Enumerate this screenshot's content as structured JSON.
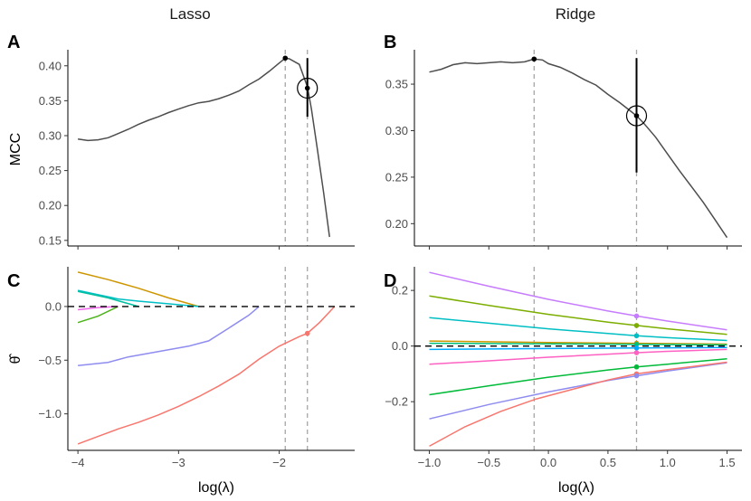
{
  "column_titles": {
    "lasso": "Lasso",
    "ridge": "Ridge"
  },
  "panel_labels": {
    "A": "A",
    "B": "B",
    "C": "C",
    "D": "D"
  },
  "axis_titles": {
    "mcc": "MCC",
    "theta": "θ̂",
    "x_lasso": "log(λ)",
    "x_ridge": "log(λ)"
  },
  "chart_data": [
    {
      "id": "A",
      "type": "line",
      "title": "Lasso",
      "ylabel": "MCC",
      "xlabel": "",
      "xlim": [
        -4.1,
        -1.25
      ],
      "ylim": [
        0.142,
        0.423
      ],
      "xticks": [
        -4,
        -3,
        -2
      ],
      "xtick_labels": [
        "−4",
        "−3",
        "−2"
      ],
      "yticks": [
        0.15,
        0.2,
        0.25,
        0.3,
        0.35,
        0.4
      ],
      "ytick_labels": [
        "0.15",
        "0.20",
        "0.25",
        "0.30",
        "0.35",
        "0.40"
      ],
      "show_xtick_labels": false,
      "vlines": [
        -1.94,
        -1.72
      ],
      "series": [
        {
          "name": "MCC",
          "color": "#4d4d4d",
          "x": [
            -4.0,
            -3.9,
            -3.8,
            -3.7,
            -3.6,
            -3.5,
            -3.4,
            -3.3,
            -3.2,
            -3.1,
            -3.0,
            -2.9,
            -2.8,
            -2.7,
            -2.6,
            -2.5,
            -2.4,
            -2.3,
            -2.2,
            -2.1,
            -2.0,
            -1.94,
            -1.9,
            -1.8,
            -1.72,
            -1.68,
            -1.62,
            -1.56,
            -1.5
          ],
          "y": [
            0.295,
            0.293,
            0.294,
            0.297,
            0.303,
            0.309,
            0.316,
            0.322,
            0.327,
            0.333,
            0.338,
            0.343,
            0.347,
            0.349,
            0.353,
            0.358,
            0.364,
            0.373,
            0.381,
            0.392,
            0.404,
            0.411,
            0.41,
            0.402,
            0.37,
            0.338,
            0.28,
            0.22,
            0.155
          ]
        }
      ],
      "points": [
        {
          "x": -1.94,
          "y": 0.411
        },
        {
          "x": -1.72,
          "y": 0.368
        }
      ],
      "errorbar": {
        "x": -1.72,
        "y": 0.368,
        "low": 0.327,
        "high": 0.411
      },
      "circle_at": {
        "x": -1.72,
        "y": 0.368
      }
    },
    {
      "id": "B",
      "type": "line",
      "title": "Ridge",
      "ylabel": "",
      "xlabel": "",
      "xlim": [
        -1.125,
        1.625
      ],
      "ylim": [
        0.176,
        0.387
      ],
      "xticks": [
        -1.0,
        -0.5,
        0.0,
        0.5,
        1.0,
        1.5
      ],
      "xtick_labels": [
        "−1.0",
        "−0.5",
        "0.0",
        "0.5",
        "1.0",
        "1.5"
      ],
      "yticks": [
        0.2,
        0.25,
        0.3,
        0.35
      ],
      "ytick_labels": [
        "0.20",
        "0.25",
        "0.30",
        "0.35"
      ],
      "show_xtick_labels": false,
      "vlines": [
        -0.12,
        0.74
      ],
      "series": [
        {
          "name": "MCC",
          "color": "#4d4d4d",
          "x": [
            -1.0,
            -0.9,
            -0.8,
            -0.7,
            -0.6,
            -0.5,
            -0.4,
            -0.3,
            -0.2,
            -0.12,
            -0.05,
            0.0,
            0.1,
            0.2,
            0.3,
            0.4,
            0.5,
            0.6,
            0.7,
            0.74,
            0.8,
            0.9,
            1.0,
            1.1,
            1.2,
            1.3,
            1.4,
            1.5
          ],
          "y": [
            0.363,
            0.366,
            0.371,
            0.373,
            0.372,
            0.373,
            0.374,
            0.373,
            0.374,
            0.377,
            0.376,
            0.372,
            0.368,
            0.362,
            0.355,
            0.349,
            0.339,
            0.33,
            0.32,
            0.316,
            0.308,
            0.293,
            0.275,
            0.257,
            0.24,
            0.223,
            0.204,
            0.185
          ]
        }
      ],
      "points": [
        {
          "x": -0.12,
          "y": 0.377
        },
        {
          "x": 0.74,
          "y": 0.316
        }
      ],
      "errorbar": {
        "x": 0.74,
        "y": 0.316,
        "low": 0.255,
        "high": 0.378
      },
      "circle_at": {
        "x": 0.74,
        "y": 0.316
      }
    },
    {
      "id": "C",
      "type": "line",
      "title": "",
      "ylabel": "θ̂",
      "xlabel": "log(λ)",
      "xlim": [
        -4.1,
        -1.25
      ],
      "ylim": [
        -1.34,
        0.37
      ],
      "xticks": [
        -4,
        -3,
        -2
      ],
      "xtick_labels": [
        "−4",
        "−3",
        "−2"
      ],
      "yticks": [
        -1.0,
        -0.5,
        0.0
      ],
      "ytick_labels": [
        "−1.0",
        "−0.5",
        "0.0"
      ],
      "show_xtick_labels": true,
      "vlines": [
        -1.94,
        -1.72
      ],
      "hline": 0,
      "series": [
        {
          "name": "coef-orange",
          "color": "#CD9600",
          "x": [
            -4.0,
            -3.7,
            -3.4,
            -3.1,
            -2.8
          ],
          "y": [
            0.32,
            0.25,
            0.17,
            0.08,
            0.0
          ]
        },
        {
          "name": "coef-teal",
          "color": "#00BFC4",
          "x": [
            -4.0,
            -3.8,
            -3.6,
            -3.4,
            -2.8
          ],
          "y": [
            0.15,
            0.11,
            0.07,
            0.05,
            0.0
          ]
        },
        {
          "name": "coef-teal-b",
          "color": "#00BFA0",
          "x": [
            -4.0,
            -3.7,
            -3.4
          ],
          "y": [
            0.14,
            0.08,
            0.0
          ]
        },
        {
          "name": "coef-green",
          "color": "#4CB31A",
          "x": [
            -4.0,
            -3.8,
            -3.6
          ],
          "y": [
            -0.15,
            -0.09,
            0.0
          ]
        },
        {
          "name": "coef-pink",
          "color": "#F066EA",
          "x": [
            -4.0,
            -3.8,
            -3.6
          ],
          "y": [
            -0.03,
            -0.01,
            0.0
          ]
        },
        {
          "name": "coef-blue",
          "color": "#8F8CF0",
          "x": [
            -4.0,
            -3.7,
            -3.5,
            -3.2,
            -2.9,
            -2.7,
            -2.5,
            -2.3,
            -2.2
          ],
          "y": [
            -0.55,
            -0.52,
            -0.47,
            -0.42,
            -0.37,
            -0.32,
            -0.2,
            -0.08,
            0.0
          ]
        },
        {
          "name": "coef-red",
          "color": "#F8766D",
          "x": [
            -4.0,
            -3.8,
            -3.6,
            -3.4,
            -3.2,
            -3.0,
            -2.8,
            -2.6,
            -2.4,
            -2.2,
            -2.0,
            -1.8,
            -1.72,
            -1.6,
            -1.5,
            -1.45
          ],
          "y": [
            -1.28,
            -1.21,
            -1.14,
            -1.08,
            -1.01,
            -0.93,
            -0.84,
            -0.74,
            -0.63,
            -0.49,
            -0.37,
            -0.28,
            -0.25,
            -0.15,
            -0.05,
            0.0
          ]
        }
      ],
      "points": [
        {
          "x": -1.72,
          "y": -0.25,
          "color": "#F8766D"
        }
      ]
    },
    {
      "id": "D",
      "type": "line",
      "title": "",
      "ylabel": "",
      "xlabel": "log(λ)",
      "xlim": [
        -1.125,
        1.625
      ],
      "ylim": [
        -0.375,
        0.285
      ],
      "xticks": [
        -1.0,
        -0.5,
        0.0,
        0.5,
        1.0,
        1.5
      ],
      "xtick_labels": [
        "−1.0",
        "−0.5",
        "0.0",
        "0.5",
        "1.0",
        "1.5"
      ],
      "yticks": [
        -0.2,
        0.0,
        0.2
      ],
      "ytick_labels": [
        "−0.2",
        "0.0",
        "0.2"
      ],
      "show_xtick_labels": true,
      "vlines": [
        -0.12,
        0.74
      ],
      "hline": 0,
      "series": [
        {
          "name": "coef-violet",
          "color": "#C77CFF",
          "x": [
            -1.0,
            -0.5,
            0.0,
            0.5,
            0.74,
            1.0,
            1.5
          ],
          "y": [
            0.265,
            0.215,
            0.168,
            0.126,
            0.108,
            0.09,
            0.058
          ]
        },
        {
          "name": "coef-olive",
          "color": "#7CAE00",
          "x": [
            -1.0,
            -0.5,
            0.0,
            0.5,
            0.74,
            1.0,
            1.5
          ],
          "y": [
            0.18,
            0.146,
            0.114,
            0.086,
            0.074,
            0.062,
            0.042
          ]
        },
        {
          "name": "coef-cyan",
          "color": "#00BFC4",
          "x": [
            -1.0,
            -0.5,
            0.0,
            0.5,
            0.74,
            1.0,
            1.5
          ],
          "y": [
            0.102,
            0.082,
            0.062,
            0.045,
            0.037,
            0.03,
            0.02
          ]
        },
        {
          "name": "coef-orange",
          "color": "#CD9600",
          "x": [
            -1.0,
            0.0,
            0.74,
            1.5
          ],
          "y": [
            0.018,
            0.013,
            0.01,
            0.007
          ]
        },
        {
          "name": "coef-teal",
          "color": "#00BF7D",
          "x": [
            -1.0,
            0.0,
            0.74,
            1.5
          ],
          "y": [
            0.01,
            0.008,
            0.006,
            0.004
          ]
        },
        {
          "name": "coef-skyblue",
          "color": "#00A9FF",
          "x": [
            -1.0,
            0.0,
            0.74,
            1.5
          ],
          "y": [
            -0.012,
            -0.009,
            -0.007,
            -0.005
          ]
        },
        {
          "name": "coef-magenta",
          "color": "#FF61C3",
          "x": [
            -1.0,
            -0.5,
            0.0,
            0.5,
            0.74,
            1.0,
            1.5
          ],
          "y": [
            -0.065,
            -0.053,
            -0.04,
            -0.029,
            -0.024,
            -0.019,
            -0.012
          ]
        },
        {
          "name": "coef-green",
          "color": "#00BA38",
          "x": [
            -1.0,
            -0.5,
            0.0,
            0.5,
            0.74,
            1.0,
            1.5
          ],
          "y": [
            -0.175,
            -0.143,
            -0.112,
            -0.086,
            -0.075,
            -0.065,
            -0.046
          ]
        },
        {
          "name": "coef-lavender",
          "color": "#8F8CF0",
          "x": [
            -1.0,
            -0.5,
            0.0,
            0.5,
            0.74,
            1.0,
            1.5
          ],
          "y": [
            -0.262,
            -0.21,
            -0.165,
            -0.124,
            -0.107,
            -0.09,
            -0.06
          ]
        },
        {
          "name": "coef-red",
          "color": "#F8766D",
          "x": [
            -1.0,
            -0.7,
            -0.4,
            -0.1,
            0.2,
            0.5,
            0.74,
            1.0,
            1.5
          ],
          "y": [
            -0.36,
            -0.29,
            -0.235,
            -0.19,
            -0.156,
            -0.122,
            -0.1,
            -0.085,
            -0.058
          ]
        }
      ],
      "points": [
        {
          "x": 0.74,
          "y": 0.108,
          "color": "#C77CFF"
        },
        {
          "x": 0.74,
          "y": 0.074,
          "color": "#7CAE00"
        },
        {
          "x": 0.74,
          "y": 0.037,
          "color": "#00BFC4"
        },
        {
          "x": 0.74,
          "y": 0.01,
          "color": "#CD9600"
        },
        {
          "x": 0.74,
          "y": 0.006,
          "color": "#00BF7D"
        },
        {
          "x": 0.74,
          "y": -0.007,
          "color": "#00A9FF"
        },
        {
          "x": 0.74,
          "y": -0.024,
          "color": "#FF61C3"
        },
        {
          "x": 0.74,
          "y": -0.075,
          "color": "#00BA38"
        },
        {
          "x": 0.74,
          "y": -0.1,
          "color": "#F8766D"
        },
        {
          "x": 0.74,
          "y": -0.107,
          "color": "#8F8CF0"
        }
      ]
    }
  ]
}
